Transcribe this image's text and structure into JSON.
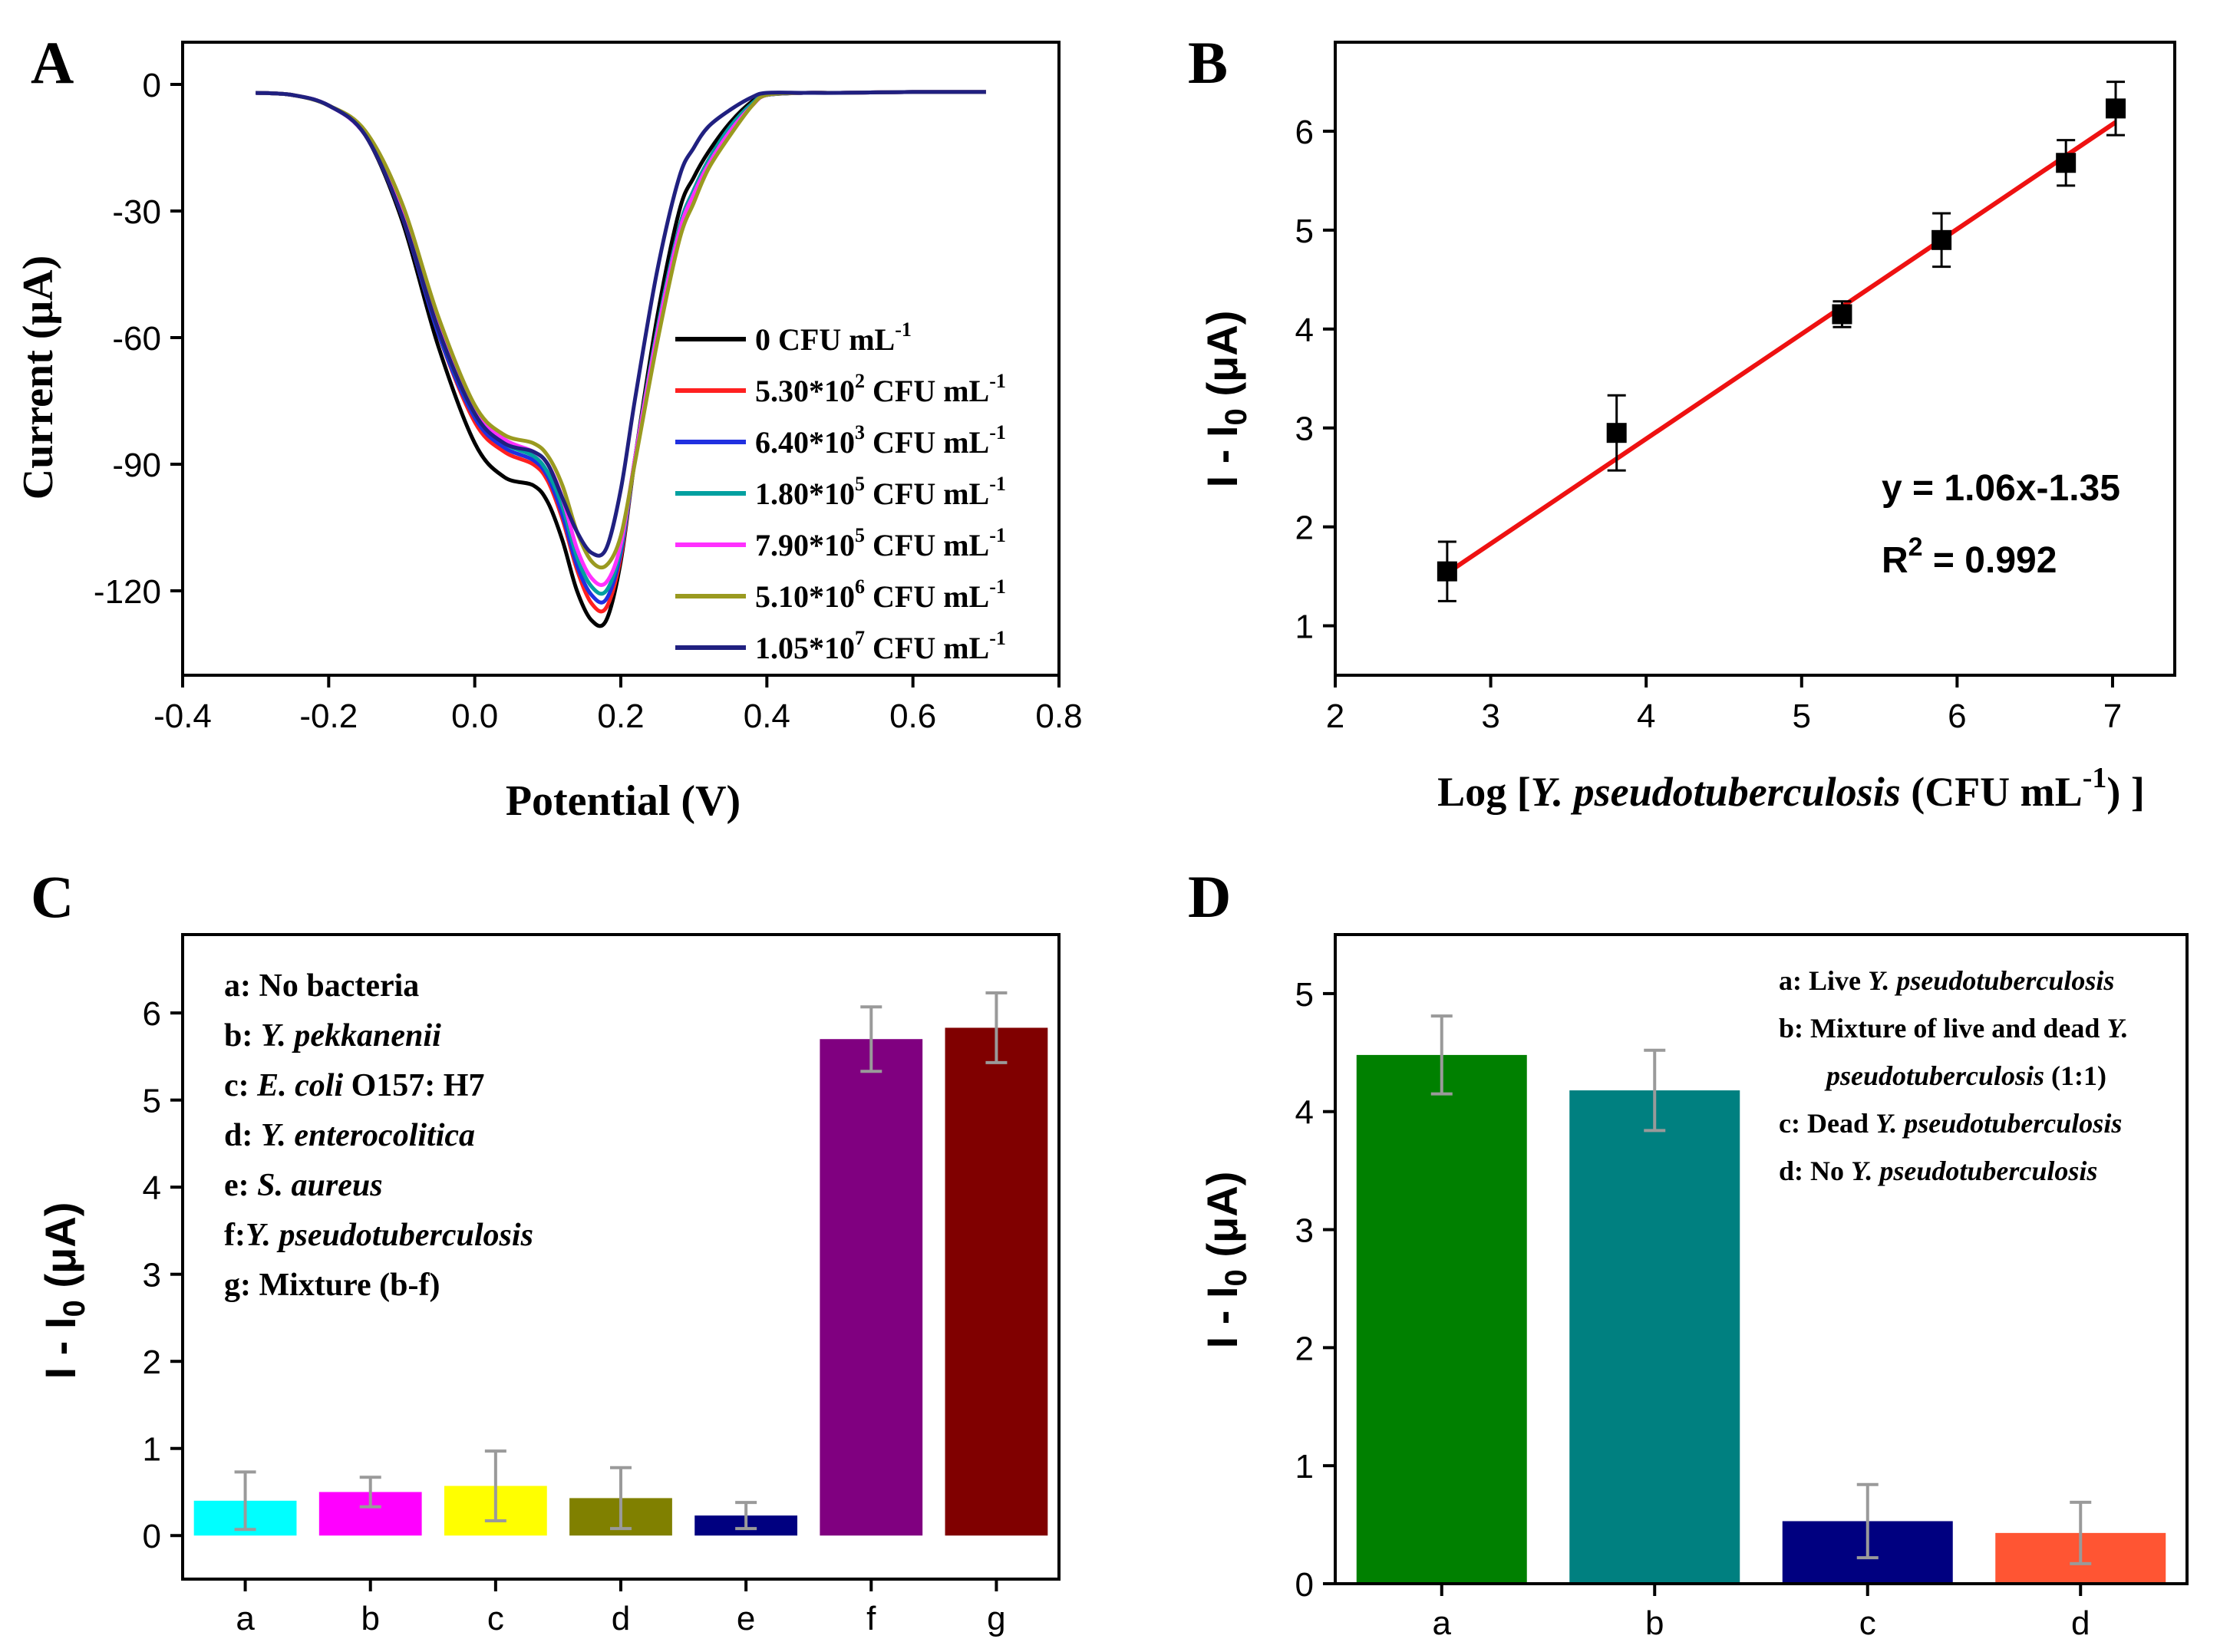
{
  "panels": {
    "A": {
      "letter": "A",
      "chart_data": {
        "type": "line",
        "title": "",
        "xlabel": "Potential (V)",
        "ylabel": "Current (μA)",
        "xlim": [
          -0.4,
          0.8
        ],
        "ylim": [
          -140,
          10
        ],
        "xticks": [
          -0.4,
          -0.2,
          0.0,
          0.2,
          0.4,
          0.6,
          0.8
        ],
        "xtick_labels": [
          "-0.4",
          "-0.2",
          "0.0",
          "0.2",
          "0.4",
          "0.6",
          "0.8"
        ],
        "yticks": [
          0,
          -30,
          -60,
          -90,
          -120
        ],
        "ytick_labels": [
          "0",
          "-30",
          "-60",
          "-90",
          "-120"
        ],
        "x": [
          -0.3,
          -0.25,
          -0.2,
          -0.15,
          -0.1,
          -0.05,
          0.0,
          0.04,
          0.08,
          0.1,
          0.12,
          0.14,
          0.16,
          0.18,
          0.2,
          0.22,
          0.25,
          0.28,
          0.3,
          0.32,
          0.35,
          0.38,
          0.4,
          0.45,
          0.5,
          0.6,
          0.7
        ],
        "series": [
          {
            "name": "0 CFU mL-1",
            "label_main": "0 CFU mL",
            "label_sup": "-1",
            "color": "#000000",
            "values": [
              -2,
              -2.5,
              -5,
              -12,
              -32,
              -62,
              -85,
              -93,
              -95,
              -99,
              -108,
              -120,
              -127,
              -127,
              -113,
              -88,
              -55,
              -30,
              -22,
              -16,
              -9,
              -4,
              -2.5,
              -2,
              -2,
              -1.8,
              -1.8
            ]
          },
          {
            "name": "5.30*10^2 CFU mL-1",
            "label_main": "5.30*10",
            "label_exp": "2",
            "label_tail": " CFU mL",
            "label_sup": "-1",
            "color": "#ff2020",
            "values": [
              -2,
              -2.5,
              -5,
              -12,
              -31,
              -59,
              -80,
              -87,
              -90,
              -94,
              -103,
              -115,
              -123,
              -124,
              -112,
              -88,
              -58,
              -34,
              -25,
              -18,
              -10,
              -4.5,
              -2.5,
              -2,
              -2,
              -1.8,
              -1.8
            ]
          },
          {
            "name": "6.40*10^3 CFU mL-1",
            "label_main": "6.40*10",
            "label_exp": "3",
            "label_tail": " CFU mL",
            "label_sup": "-1",
            "color": "#2030e0",
            "values": [
              -2,
              -2.5,
              -5,
              -12,
              -31,
              -59,
              -79,
              -86,
              -89,
              -93,
              -102,
              -114,
              -121,
              -122,
              -111,
              -88,
              -58,
              -34,
              -25,
              -18,
              -10,
              -4.5,
              -2.5,
              -2,
              -2,
              -1.8,
              -1.8
            ]
          },
          {
            "name": "1.80*10^5 CFU mL-1",
            "label_main": "1.80*10",
            "label_exp": "5",
            "label_tail": " CFU mL",
            "label_sup": "-1",
            "color": "#00a0a0",
            "values": [
              -2,
              -2.5,
              -5,
              -12,
              -30,
              -58,
              -78,
              -85,
              -88,
              -92,
              -100,
              -112,
              -119,
              -120,
              -110,
              -88,
              -58,
              -34,
              -25,
              -18,
              -10,
              -4.5,
              -2.5,
              -2,
              -2,
              -1.8,
              -1.8
            ]
          },
          {
            "name": "7.90*10^5 CFU mL-1",
            "label_main": "7.90*10",
            "label_exp": "5",
            "label_tail": " CFU mL",
            "label_sup": "-1",
            "color": "#ff30ff",
            "values": [
              -2,
              -2.5,
              -5,
              -12,
              -30,
              -57,
              -77,
              -84,
              -87,
              -90,
              -98,
              -110,
              -117,
              -118,
              -109,
              -88,
              -59,
              -35,
              -26,
              -19,
              -11,
              -5,
              -2.5,
              -2,
              -2,
              -1.8,
              -1.8
            ]
          },
          {
            "name": "5.10*10^6 CFU mL-1",
            "label_main": "5.10*10",
            "label_exp": "6",
            "label_tail": " CFU mL",
            "label_sup": "-1",
            "color": "#9a9a20",
            "values": [
              -2,
              -2.5,
              -5,
              -11,
              -28,
              -55,
              -76,
              -83,
              -85,
              -88,
              -95,
              -106,
              -113,
              -114,
              -107,
              -89,
              -61,
              -37,
              -28,
              -20,
              -12,
              -5,
              -2.5,
              -2,
              -2,
              -1.8,
              -1.8
            ]
          },
          {
            "name": "1.05*10^7 CFU mL-1",
            "label_main": "1.05*10",
            "label_exp": "7",
            "label_tail": " CFU mL",
            "label_sup": "-1",
            "color": "#202080",
            "values": [
              -2,
              -2.5,
              -5,
              -12,
              -31,
              -58,
              -78,
              -85,
              -87,
              -90,
              -98,
              -106,
              -111,
              -110,
              -96,
              -74,
              -44,
              -22,
              -15,
              -10,
              -6,
              -3,
              -2,
              -2,
              -2,
              -1.8,
              -1.8
            ]
          }
        ]
      }
    },
    "B": {
      "letter": "B",
      "equation": "y = 1.06x-1.35",
      "r2_label": "R",
      "r2_sup": "2",
      "r2_value": " = 0.992",
      "chart_data": {
        "type": "scatter",
        "title": "",
        "xlabel_pre": "Log [",
        "xlabel_italic": "Y. pseudotuberculosis",
        "xlabel_post": " (CFU mL",
        "xlabel_sup": "-1",
        "xlabel_end": ") ]",
        "ylabel_main": "I - I",
        "ylabel_sub": "0",
        "ylabel_unit": " (μA)",
        "xlim": [
          2,
          7.4
        ],
        "ylim": [
          0.5,
          6.9
        ],
        "xticks": [
          2,
          3,
          4,
          5,
          6,
          7
        ],
        "xtick_labels": [
          "2",
          "3",
          "4",
          "5",
          "6",
          "7"
        ],
        "yticks": [
          1,
          2,
          3,
          4,
          5,
          6
        ],
        "ytick_labels": [
          "1",
          "2",
          "3",
          "4",
          "5",
          "6"
        ],
        "points": [
          {
            "x": 2.72,
            "y": 1.55,
            "err": 0.3
          },
          {
            "x": 3.81,
            "y": 2.95,
            "err": 0.38
          },
          {
            "x": 5.26,
            "y": 4.15,
            "err": 0.13
          },
          {
            "x": 5.9,
            "y": 4.9,
            "err": 0.27
          },
          {
            "x": 6.7,
            "y": 5.68,
            "err": 0.23
          },
          {
            "x": 7.02,
            "y": 6.23,
            "err": 0.27
          }
        ],
        "fit": {
          "slope": 1.06,
          "intercept": -1.35,
          "x_range": [
            2.7,
            7.02
          ],
          "color": "#ee1111"
        }
      }
    },
    "C": {
      "letter": "C",
      "legend": [
        {
          "key": "a: ",
          "parts": [
            {
              "t": "No bacteria",
              "i": false
            }
          ]
        },
        {
          "key": "b: ",
          "parts": [
            {
              "t": "Y. pekkanenii",
              "i": true
            }
          ]
        },
        {
          "key": "c: ",
          "parts": [
            {
              "t": "E. coli",
              "i": true
            },
            {
              "t": " O157: H7",
              "i": false
            }
          ]
        },
        {
          "key": "d: ",
          "parts": [
            {
              "t": "Y. enterocolitica",
              "i": true
            }
          ]
        },
        {
          "key": "e: ",
          "parts": [
            {
              "t": "S. aureus",
              "i": true
            }
          ]
        },
        {
          "key": "f:",
          "parts": [
            {
              "t": "Y. pseudotuberculosis",
              "i": true
            }
          ]
        },
        {
          "key": "g: ",
          "parts": [
            {
              "t": "Mixture (b-f)",
              "i": false
            }
          ]
        }
      ],
      "chart_data": {
        "type": "bar",
        "title": "",
        "xlabel": "",
        "ylabel_main": "I - I",
        "ylabel_sub": "0",
        "ylabel_unit": " (μA)",
        "ylim": [
          -0.5,
          6.9
        ],
        "yticks": [
          0,
          1,
          2,
          3,
          4,
          5,
          6
        ],
        "ytick_labels": [
          "0",
          "1",
          "2",
          "3",
          "4",
          "5",
          "6"
        ],
        "categories": [
          "a",
          "b",
          "c",
          "d",
          "e",
          "f",
          "g"
        ],
        "values": [
          0.4,
          0.5,
          0.57,
          0.43,
          0.23,
          5.7,
          5.83
        ],
        "errors": [
          0.33,
          0.17,
          0.4,
          0.35,
          0.15,
          0.37,
          0.4
        ],
        "colors": [
          "#00ffff",
          "#ff00ff",
          "#ffff00",
          "#808000",
          "#000080",
          "#800080",
          "#800000"
        ]
      }
    },
    "D": {
      "letter": "D",
      "legend": [
        {
          "key": "a: ",
          "parts": [
            {
              "t": "Live ",
              "i": false
            },
            {
              "t": "Y. pseudotuberculosis",
              "i": true
            }
          ]
        },
        {
          "key": "b: ",
          "parts": [
            {
              "t": "Mixture of live and dead ",
              "i": false
            },
            {
              "t": "Y.",
              "i": true
            }
          ]
        },
        {
          "key": "",
          "parts": [
            {
              "t": "pseudotuberculosis",
              "i": true
            },
            {
              "t": " (1:1)",
              "i": false
            }
          ]
        },
        {
          "key": "c: ",
          "parts": [
            {
              "t": "Dead ",
              "i": false
            },
            {
              "t": "Y. pseudotuberculosis",
              "i": true
            }
          ]
        },
        {
          "key": "d: ",
          "parts": [
            {
              "t": "No ",
              "i": false
            },
            {
              "t": "Y. pseudotuberculosis",
              "i": true
            }
          ]
        }
      ],
      "chart_data": {
        "type": "bar",
        "title": "",
        "xlabel": "",
        "ylabel_main": "I - I",
        "ylabel_sub": "0",
        "ylabel_unit": " (μA)",
        "ylim": [
          0,
          5.5
        ],
        "yticks": [
          0,
          1,
          2,
          3,
          4,
          5
        ],
        "ytick_labels": [
          "0",
          "1",
          "2",
          "3",
          "4",
          "5"
        ],
        "categories": [
          "a",
          "b",
          "c",
          "d"
        ],
        "values": [
          4.48,
          4.18,
          0.53,
          0.43
        ],
        "errors": [
          0.33,
          0.34,
          0.31,
          0.26
        ],
        "colors": [
          "#008000",
          "#008080",
          "#000080",
          "#ff5533"
        ]
      }
    }
  }
}
